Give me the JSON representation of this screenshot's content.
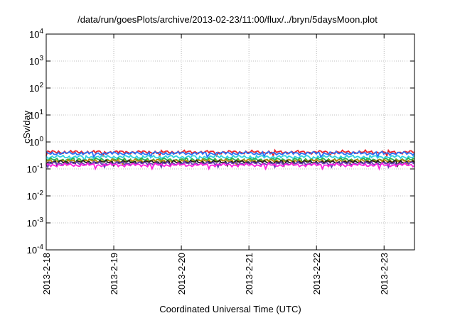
{
  "chart_data": {
    "type": "line",
    "title": "/data/run/goesPlots/archive/2013-02-23/11:00/flux/../bryn/5daysMoon.plot",
    "xlabel": "Coordinated Universal Time (UTC)",
    "ylabel": "cSv/day",
    "yscale": "log",
    "ylim_exponents": [
      -4,
      4
    ],
    "y_tick_labels": [
      {
        "base": "10",
        "exp": "4"
      },
      {
        "base": "10",
        "exp": "3"
      },
      {
        "base": "10",
        "exp": "2"
      },
      {
        "base": "10",
        "exp": "1"
      },
      {
        "base": "10",
        "exp": "0"
      },
      {
        "base": "10",
        "exp": "-1"
      },
      {
        "base": "10",
        "exp": "-2"
      },
      {
        "base": "10",
        "exp": "-3"
      },
      {
        "base": "10",
        "exp": "-4"
      }
    ],
    "x_range_days": [
      0,
      5.45
    ],
    "x_tick_labels": [
      "2013-2-18",
      "2013-2-19",
      "2013-2-20",
      "2013-2-21",
      "2013-2-22",
      "2013-2-23"
    ],
    "grid": true,
    "series": [
      {
        "color": "#e8212c",
        "level": 0.42
      },
      {
        "color": "#2b6ff5",
        "level": 0.38
      },
      {
        "color": "#2ecfe0",
        "level": 0.28
      },
      {
        "color": "#2db34a",
        "level": 0.22
      },
      {
        "color": "#b8860b",
        "level": 0.2
      },
      {
        "color": "#222222",
        "level": 0.18
      },
      {
        "color": "#6a3fb5",
        "level": 0.16
      },
      {
        "color": "#ff1fe0",
        "level": 0.14
      }
    ]
  }
}
